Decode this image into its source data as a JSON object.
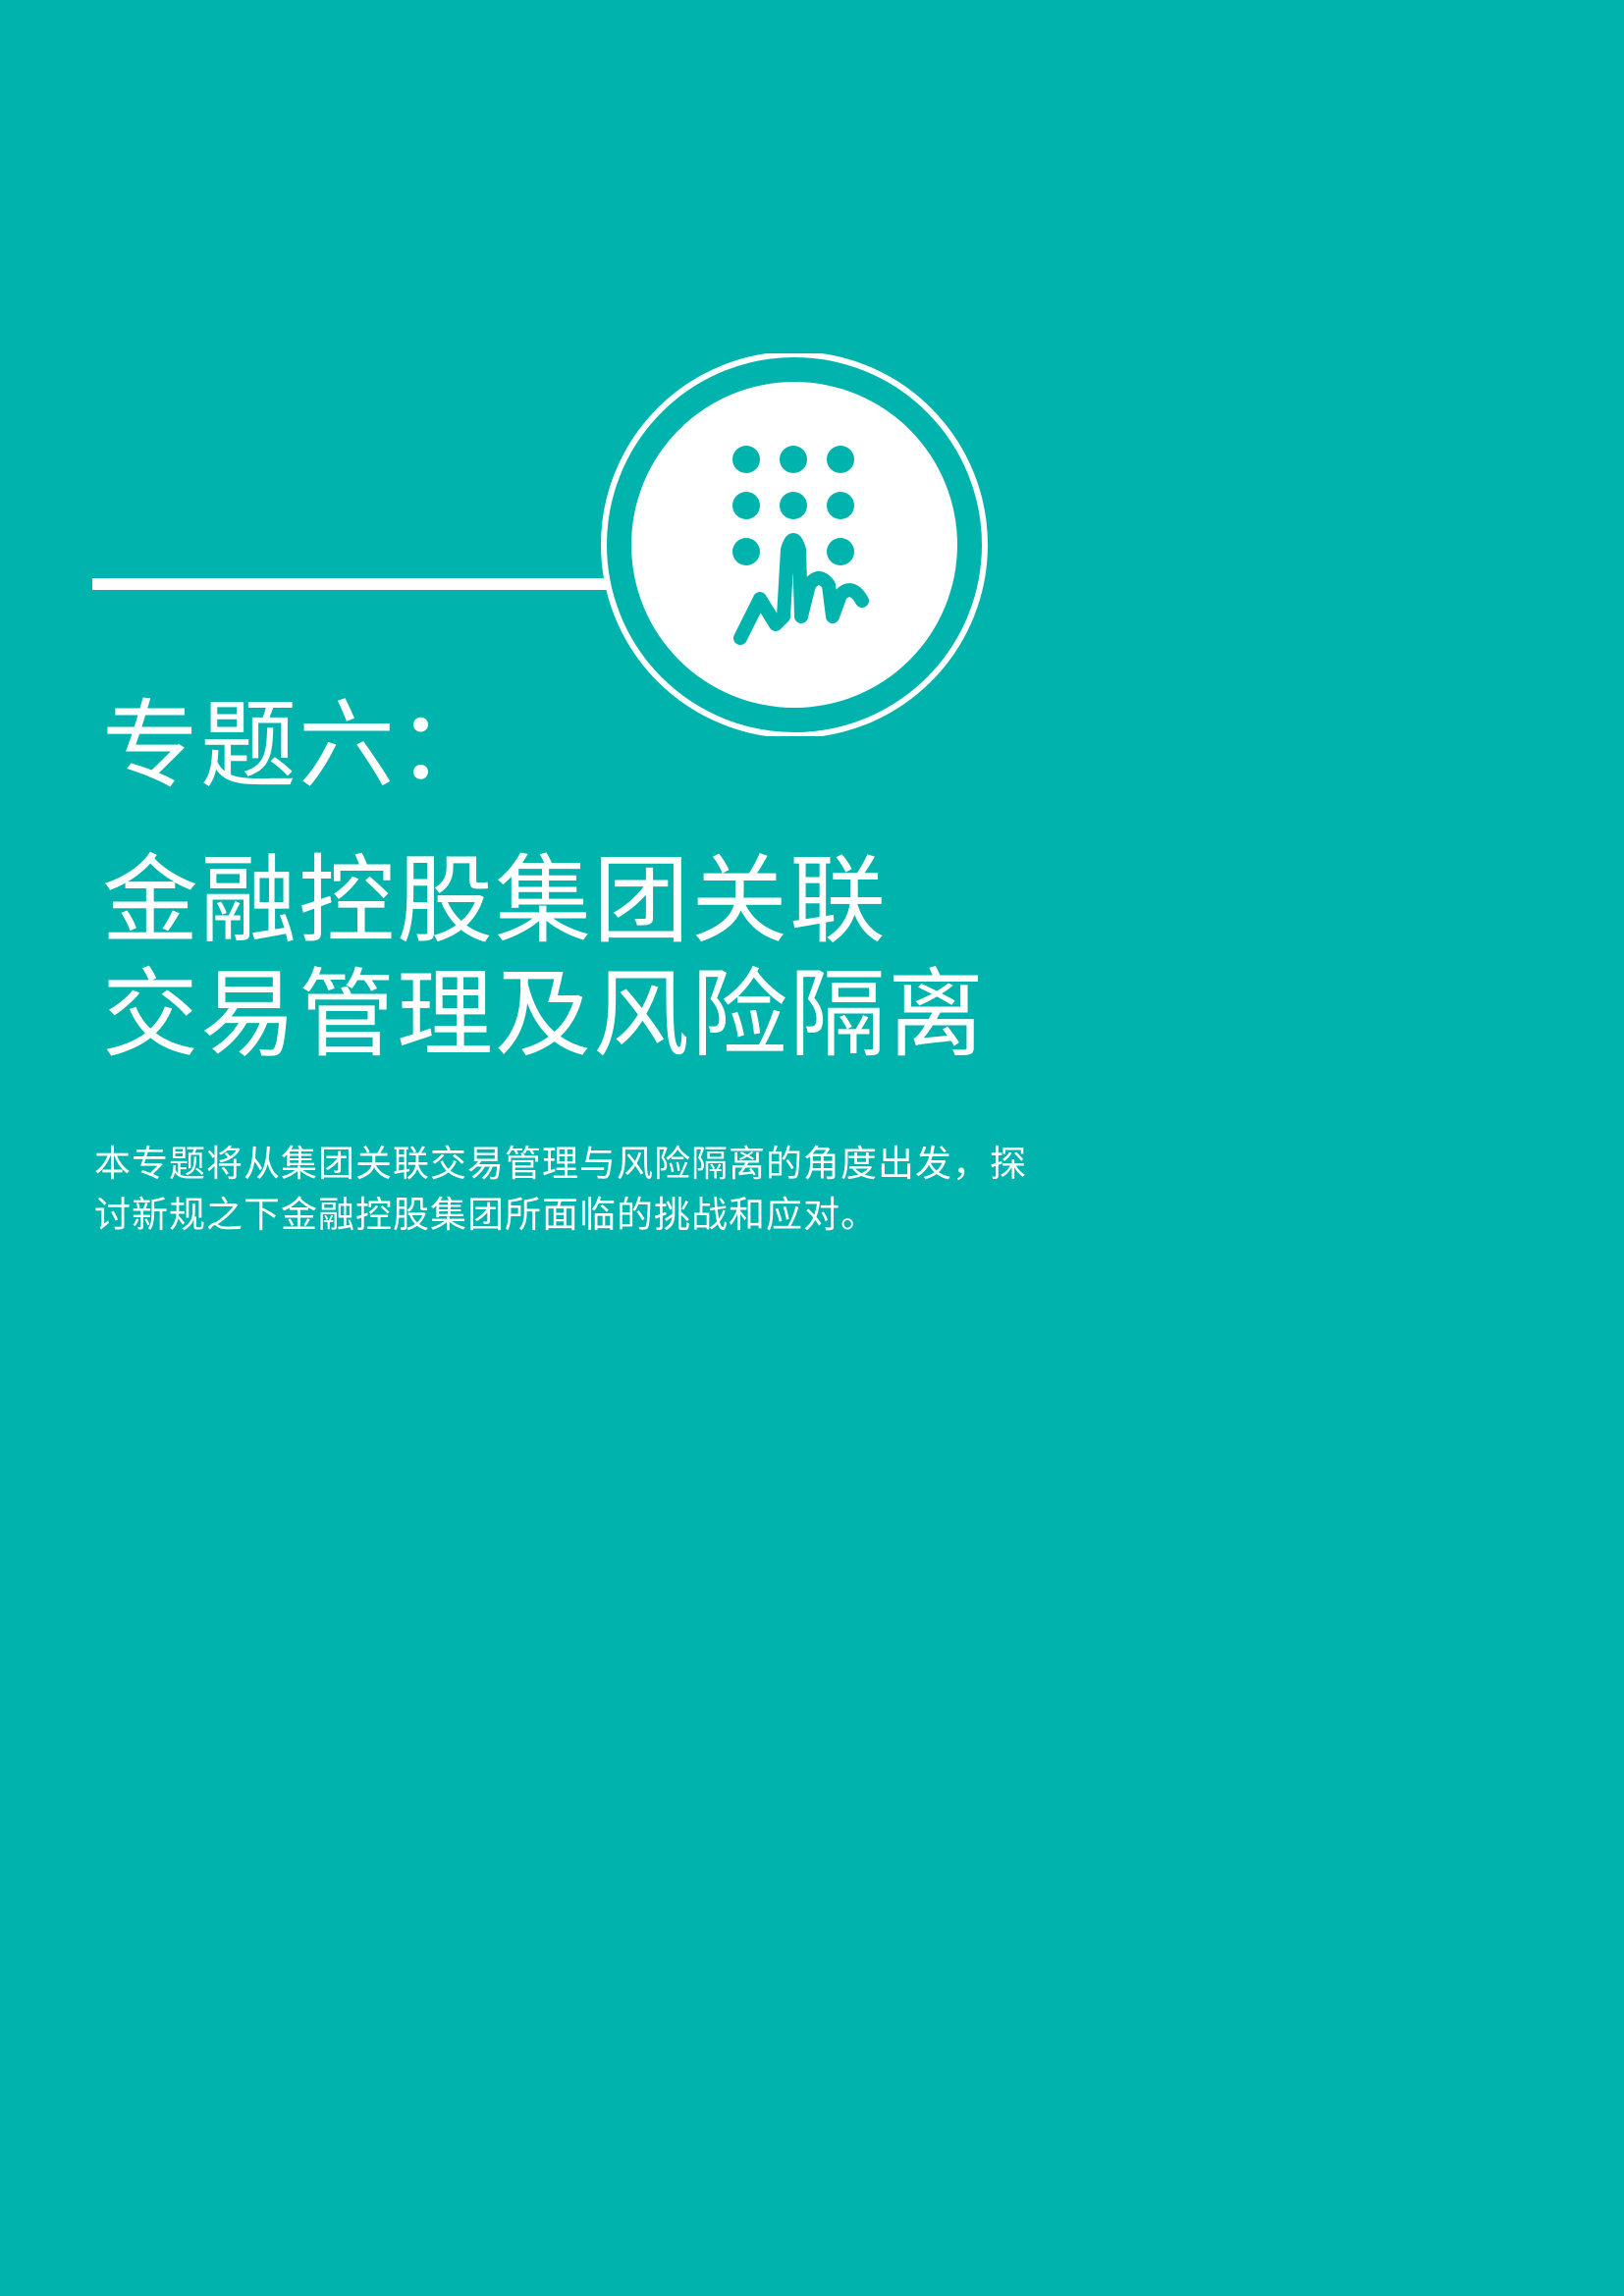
{
  "page": {
    "background_color": "#00b3ac",
    "text_color": "#ffffff"
  },
  "badge": {
    "icon": "touch-keypad-icon"
  },
  "topic_label": "专题六：",
  "title": {
    "line1": "金融控股集团关联",
    "line2": "交易管理及风险隔离"
  },
  "intro": "本专题将从集团关联交易管理与风险隔离的角度出发，探讨新规之下金融控股集团所面临的挑战和应对。"
}
